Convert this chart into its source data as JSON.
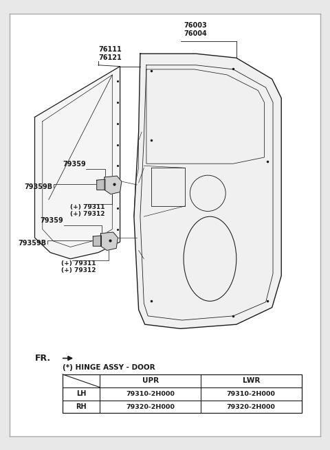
{
  "bg_color": "#e8e8e8",
  "inner_bg_color": "#ffffff",
  "border_color": "#aaaaaa",
  "line_color": "#1a1a1a",
  "title": "(*) HINGE ASSY - DOOR",
  "table_headers": [
    "",
    "UPR",
    "LWR"
  ],
  "table_rows": [
    [
      "LH",
      "79310-2H000",
      "79310-2H000"
    ],
    [
      "RH",
      "79320-2H000",
      "79320-2H000"
    ]
  ],
  "fr_label": "FR."
}
